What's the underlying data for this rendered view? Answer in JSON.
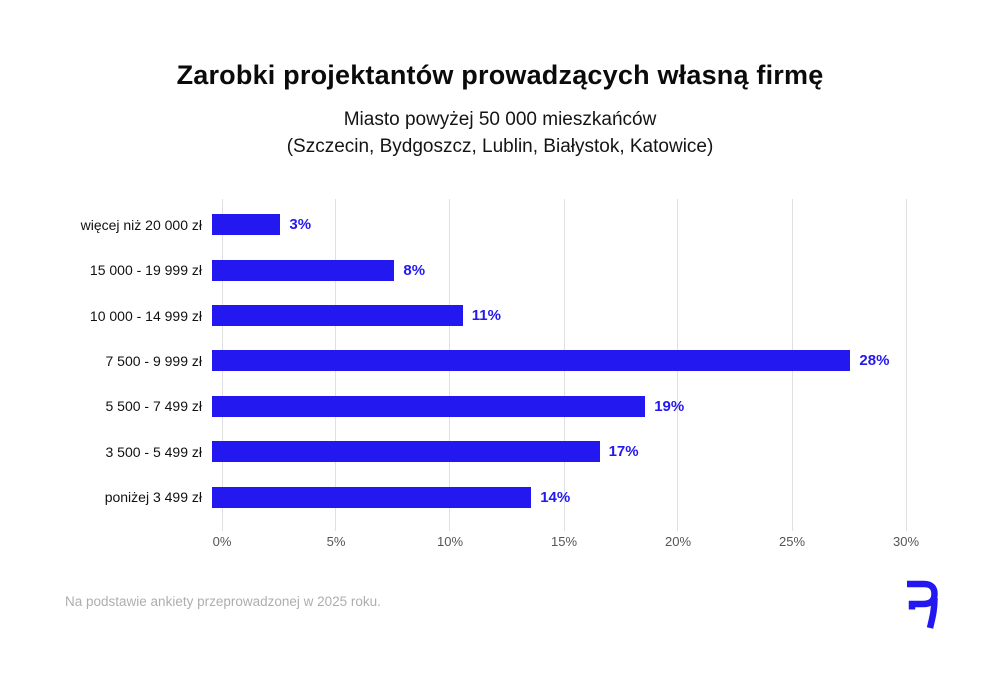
{
  "title": "Zarobki projektantów prowadzących własną firmę",
  "subtitle_line1": "Miasto powyżej 50 000 mieszkańców",
  "subtitle_line2": "(Szczecin, Bydgoszcz, Lublin, Białystok, Katowice)",
  "footer": {
    "note": "Na podstawie ankiety przeprowadzonej w 2025 roku."
  },
  "colors": {
    "bar": "#2418f0",
    "value_label": "#2418f0",
    "gridline": "#e0e0e0",
    "axis_text": "#555555",
    "category_text": "#111111",
    "footer_text": "#aeaeae",
    "background": "#ffffff",
    "logo": "#2418f0"
  },
  "chart_data": {
    "type": "bar",
    "orientation": "horizontal",
    "title": "Zarobki projektantów prowadzących własną firmę",
    "xlabel": "",
    "ylabel": "",
    "categories": [
      "więcej niż 20 000 zł",
      "15 000 - 19 999 zł",
      "10 000 - 14 999 zł",
      "7 500 - 9 999 zł",
      "5 500 - 7 499 zł",
      "3 500 - 5 499 zł",
      "poniżej 3 499 zł"
    ],
    "values": [
      3,
      8,
      11,
      28,
      19,
      17,
      14
    ],
    "value_labels": [
      "3%",
      "8%",
      "11%",
      "28%",
      "19%",
      "17%",
      "14%"
    ],
    "x_ticks": [
      "0%",
      "5%",
      "10%",
      "15%",
      "20%",
      "25%",
      "30%"
    ],
    "x_tick_values": [
      0,
      5,
      10,
      15,
      20,
      25,
      30
    ],
    "xlim": [
      0,
      30
    ],
    "grid": true,
    "legend": false
  }
}
